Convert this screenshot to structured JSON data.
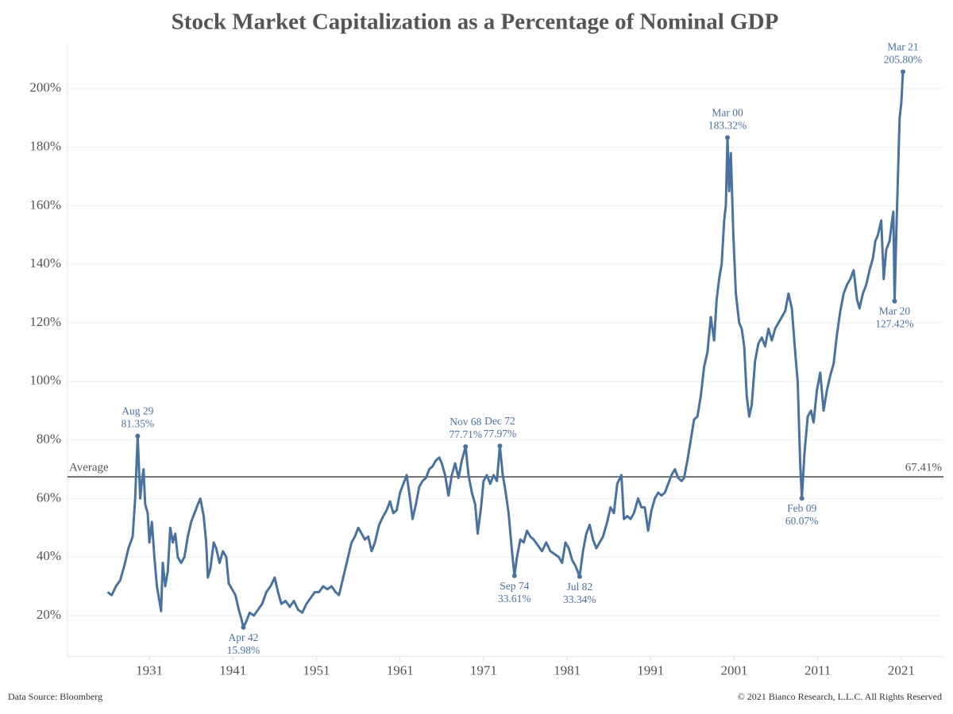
{
  "chart_data": {
    "type": "line",
    "title": "Stock Market Capitalization as a Percentage of Nominal GDP",
    "source": "Data Source: Bloomberg",
    "copyright": "© 2021 Bianco Research, L.L.C. All Rights Reserved",
    "xlim": [
      1921.2,
      2026.05
    ],
    "xticks": [
      1931,
      1941,
      1951,
      1961,
      1971,
      1981,
      1991,
      2001,
      2011,
      2021
    ],
    "ylim": [
      6,
      215
    ],
    "yticks": [
      {
        "value": 20,
        "label": "20%"
      },
      {
        "value": 40,
        "label": "40%"
      },
      {
        "value": 60,
        "label": "60%"
      },
      {
        "value": 80,
        "label": "80%"
      },
      {
        "value": 100,
        "label": "100%"
      },
      {
        "value": 120,
        "label": "120%"
      },
      {
        "value": 140,
        "label": "140%"
      },
      {
        "value": 160,
        "label": "160%"
      },
      {
        "value": 180,
        "label": "180%"
      },
      {
        "value": 200,
        "label": "200%"
      }
    ],
    "grid": true,
    "color": "#4a72a0",
    "average": {
      "label": "Average",
      "value": 67.41,
      "value_label": "67.41%",
      "color": "#555"
    },
    "annotations": [
      {
        "date": "Aug 29",
        "label": "81.35%",
        "x": 1929.6,
        "value": 81.35
      },
      {
        "date": "Apr 42",
        "label": "15.98%",
        "x": 1942.25,
        "value": 15.98
      },
      {
        "date": "Nov 68",
        "label": "77.71%",
        "x": 1968.85,
        "value": 77.71
      },
      {
        "date": "Dec 72",
        "label": "77.97%",
        "x": 1972.95,
        "value": 77.97
      },
      {
        "date": "Sep 74",
        "label": "33.61%",
        "x": 1974.7,
        "value": 33.61
      },
      {
        "date": "Jul 82",
        "label": "33.34%",
        "x": 1982.5,
        "value": 33.34
      },
      {
        "date": "Mar 00",
        "label": "183.32%",
        "x": 2000.2,
        "value": 183.32
      },
      {
        "date": "Feb 09",
        "label": "60.07%",
        "x": 2009.1,
        "value": 60.07
      },
      {
        "date": "Mar 20",
        "label": "127.42%",
        "x": 2020.2,
        "value": 127.42
      },
      {
        "date": "Mar 21",
        "label": "205.80%",
        "x": 2021.2,
        "value": 205.8
      }
    ],
    "x": [
      1926.0,
      1926.5,
      1927,
      1927.5,
      1928,
      1928.5,
      1929,
      1929.3,
      1929.6,
      1929.9,
      1930.1,
      1930.3,
      1930.5,
      1930.8,
      1931.0,
      1931.3,
      1931.6,
      1931.9,
      1932.2,
      1932.4,
      1932.6,
      1932.9,
      1933.2,
      1933.5,
      1933.8,
      1934.1,
      1934.4,
      1934.8,
      1935.2,
      1935.6,
      1936.0,
      1936.4,
      1936.8,
      1937.1,
      1937.5,
      1937.8,
      1938.0,
      1938.3,
      1938.7,
      1939.0,
      1939.4,
      1939.8,
      1940.2,
      1940.5,
      1940.9,
      1941.3,
      1941.7,
      1942.0,
      1942.25,
      1942.6,
      1943.0,
      1943.5,
      1944.0,
      1944.5,
      1945.0,
      1945.5,
      1946.0,
      1946.4,
      1946.8,
      1947.3,
      1947.8,
      1948.3,
      1948.8,
      1949.3,
      1949.8,
      1950.3,
      1950.8,
      1951.3,
      1951.8,
      1952.3,
      1952.8,
      1953.3,
      1953.7,
      1954.2,
      1954.7,
      1955.2,
      1955.6,
      1956.0,
      1956.4,
      1956.8,
      1957.2,
      1957.6,
      1958.0,
      1958.5,
      1959.0,
      1959.4,
      1959.8,
      1960.2,
      1960.6,
      1961.0,
      1961.4,
      1961.8,
      1962.2,
      1962.5,
      1962.9,
      1963.3,
      1963.7,
      1964.1,
      1964.5,
      1964.9,
      1965.3,
      1965.7,
      1966.0,
      1966.4,
      1966.8,
      1967.2,
      1967.6,
      1968.0,
      1968.4,
      1968.85,
      1969.2,
      1969.6,
      1970.0,
      1970.3,
      1970.7,
      1971.0,
      1971.4,
      1971.8,
      1972.2,
      1972.6,
      1972.95,
      1973.3,
      1973.6,
      1974.0,
      1974.4,
      1974.7,
      1975.0,
      1975.4,
      1975.8,
      1976.2,
      1976.6,
      1977.0,
      1977.5,
      1978.0,
      1978.5,
      1979.0,
      1979.5,
      1980.0,
      1980.4,
      1980.8,
      1981.2,
      1981.6,
      1982.0,
      1982.5,
      1982.9,
      1983.3,
      1983.7,
      1984.1,
      1984.5,
      1984.9,
      1985.3,
      1985.8,
      1986.2,
      1986.6,
      1987.0,
      1987.5,
      1987.8,
      1988.2,
      1988.6,
      1989.0,
      1989.5,
      1989.9,
      1990.3,
      1990.7,
      1991.1,
      1991.5,
      1991.9,
      1992.3,
      1992.7,
      1993.1,
      1993.5,
      1993.9,
      1994.3,
      1994.7,
      1995.0,
      1995.4,
      1995.8,
      1996.2,
      1996.6,
      1997.0,
      1997.4,
      1997.8,
      1998.2,
      1998.6,
      1998.9,
      1999.2,
      1999.5,
      1999.8,
      2000.0,
      2000.2,
      2000.4,
      2000.6,
      2000.9,
      2001.2,
      2001.6,
      2001.9,
      2002.2,
      2002.5,
      2002.8,
      2003.1,
      2003.5,
      2003.9,
      2004.3,
      2004.7,
      2005.1,
      2005.5,
      2005.9,
      2006.3,
      2006.7,
      2007.1,
      2007.5,
      2007.9,
      2008.3,
      2008.6,
      2008.9,
      2009.1,
      2009.4,
      2009.8,
      2010.2,
      2010.5,
      2010.9,
      2011.3,
      2011.7,
      2012.1,
      2012.5,
      2012.9,
      2013.3,
      2013.7,
      2014.1,
      2014.5,
      2014.9,
      2015.3,
      2015.7,
      2016.0,
      2016.4,
      2016.8,
      2017.2,
      2017.6,
      2017.9,
      2018.2,
      2018.6,
      2018.9,
      2019.2,
      2019.6,
      2019.9,
      2020.05,
      2020.2,
      2020.4,
      2020.6,
      2020.8,
      2021.0,
      2021.2
    ],
    "values": [
      28,
      27,
      30,
      32,
      37,
      43,
      47,
      60,
      81.35,
      60,
      66,
      70,
      58,
      55,
      45,
      52,
      40,
      30,
      25,
      21.5,
      38,
      30,
      35,
      50,
      45,
      48,
      40,
      38,
      40,
      47,
      52,
      55,
      58,
      60,
      54,
      45,
      33,
      36,
      45,
      43,
      38,
      42,
      40,
      31,
      29,
      27,
      22,
      19,
      15.98,
      18,
      21,
      20,
      22,
      24,
      28,
      30,
      33,
      28,
      24,
      25,
      23,
      25,
      22,
      21,
      24,
      26,
      28,
      28,
      30,
      29,
      30,
      28,
      27,
      33,
      39,
      45,
      47,
      50,
      48,
      46,
      47,
      42,
      45,
      51,
      54,
      56,
      59,
      55,
      56,
      62,
      65,
      68,
      60,
      53,
      58,
      64,
      66,
      67,
      70,
      71,
      73,
      74,
      72,
      68,
      61,
      68,
      72,
      67,
      73,
      77.71,
      68,
      62,
      58,
      48,
      57,
      66,
      68,
      65,
      68,
      66,
      77.97,
      68,
      63,
      55,
      42,
      33.61,
      40,
      46,
      45,
      49,
      47,
      46,
      44,
      42,
      45,
      42,
      41,
      40,
      38,
      45,
      43,
      39,
      37,
      33.34,
      42,
      48,
      51,
      46,
      43,
      45,
      47,
      52,
      57,
      55,
      65,
      68,
      53,
      54,
      53,
      55,
      60,
      57,
      57,
      49,
      56,
      60,
      62,
      61,
      62,
      65,
      68,
      70,
      67,
      66,
      67,
      73,
      80,
      87,
      88,
      95,
      105,
      110,
      122,
      114,
      128,
      135,
      140,
      155,
      160,
      183.32,
      165,
      178,
      150,
      130,
      120,
      118,
      112,
      95,
      88,
      92,
      107,
      113,
      115,
      112,
      118,
      114,
      118,
      120,
      122,
      124,
      130,
      125,
      110,
      100,
      72,
      60.07,
      75,
      88,
      90,
      86,
      97,
      103,
      90,
      97,
      102,
      106,
      116,
      124,
      130,
      133,
      135,
      138,
      128,
      125,
      130,
      133,
      138,
      142,
      148,
      150,
      155,
      135,
      145,
      148,
      155,
      158,
      127.42,
      150,
      170,
      190,
      195,
      205.8
    ]
  }
}
